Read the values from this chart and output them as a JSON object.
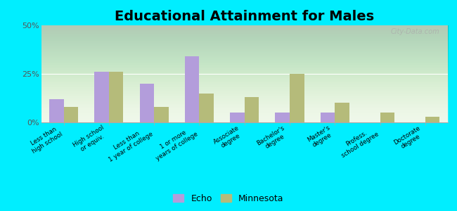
{
  "title": "Educational Attainment for Males",
  "categories": [
    "Less than\nhigh school",
    "High school\nor equiv.",
    "Less than\n1 year of college",
    "1 or more\nyears of college",
    "Associate\ndegree",
    "Bachelor's\ndegree",
    "Master's\ndegree",
    "Profess.\nschool degree",
    "Doctorate\ndegree"
  ],
  "echo_values": [
    12,
    26,
    20,
    34,
    5,
    5,
    5,
    0,
    0
  ],
  "minnesota_values": [
    8,
    26,
    8,
    15,
    13,
    25,
    10,
    5,
    3
  ],
  "echo_color": "#b39ddb",
  "minnesota_color": "#b5bb7a",
  "ylim": [
    0,
    50
  ],
  "yticks": [
    0,
    25,
    50
  ],
  "ytick_labels": [
    "0%",
    "25%",
    "50%"
  ],
  "bg_top_color": "#d4ecc8",
  "bg_bottom_color": "#eef7e8",
  "outer_background": "#00eeff",
  "title_fontsize": 14,
  "legend_labels": [
    "Echo",
    "Minnesota"
  ],
  "watermark": "City-Data.com"
}
